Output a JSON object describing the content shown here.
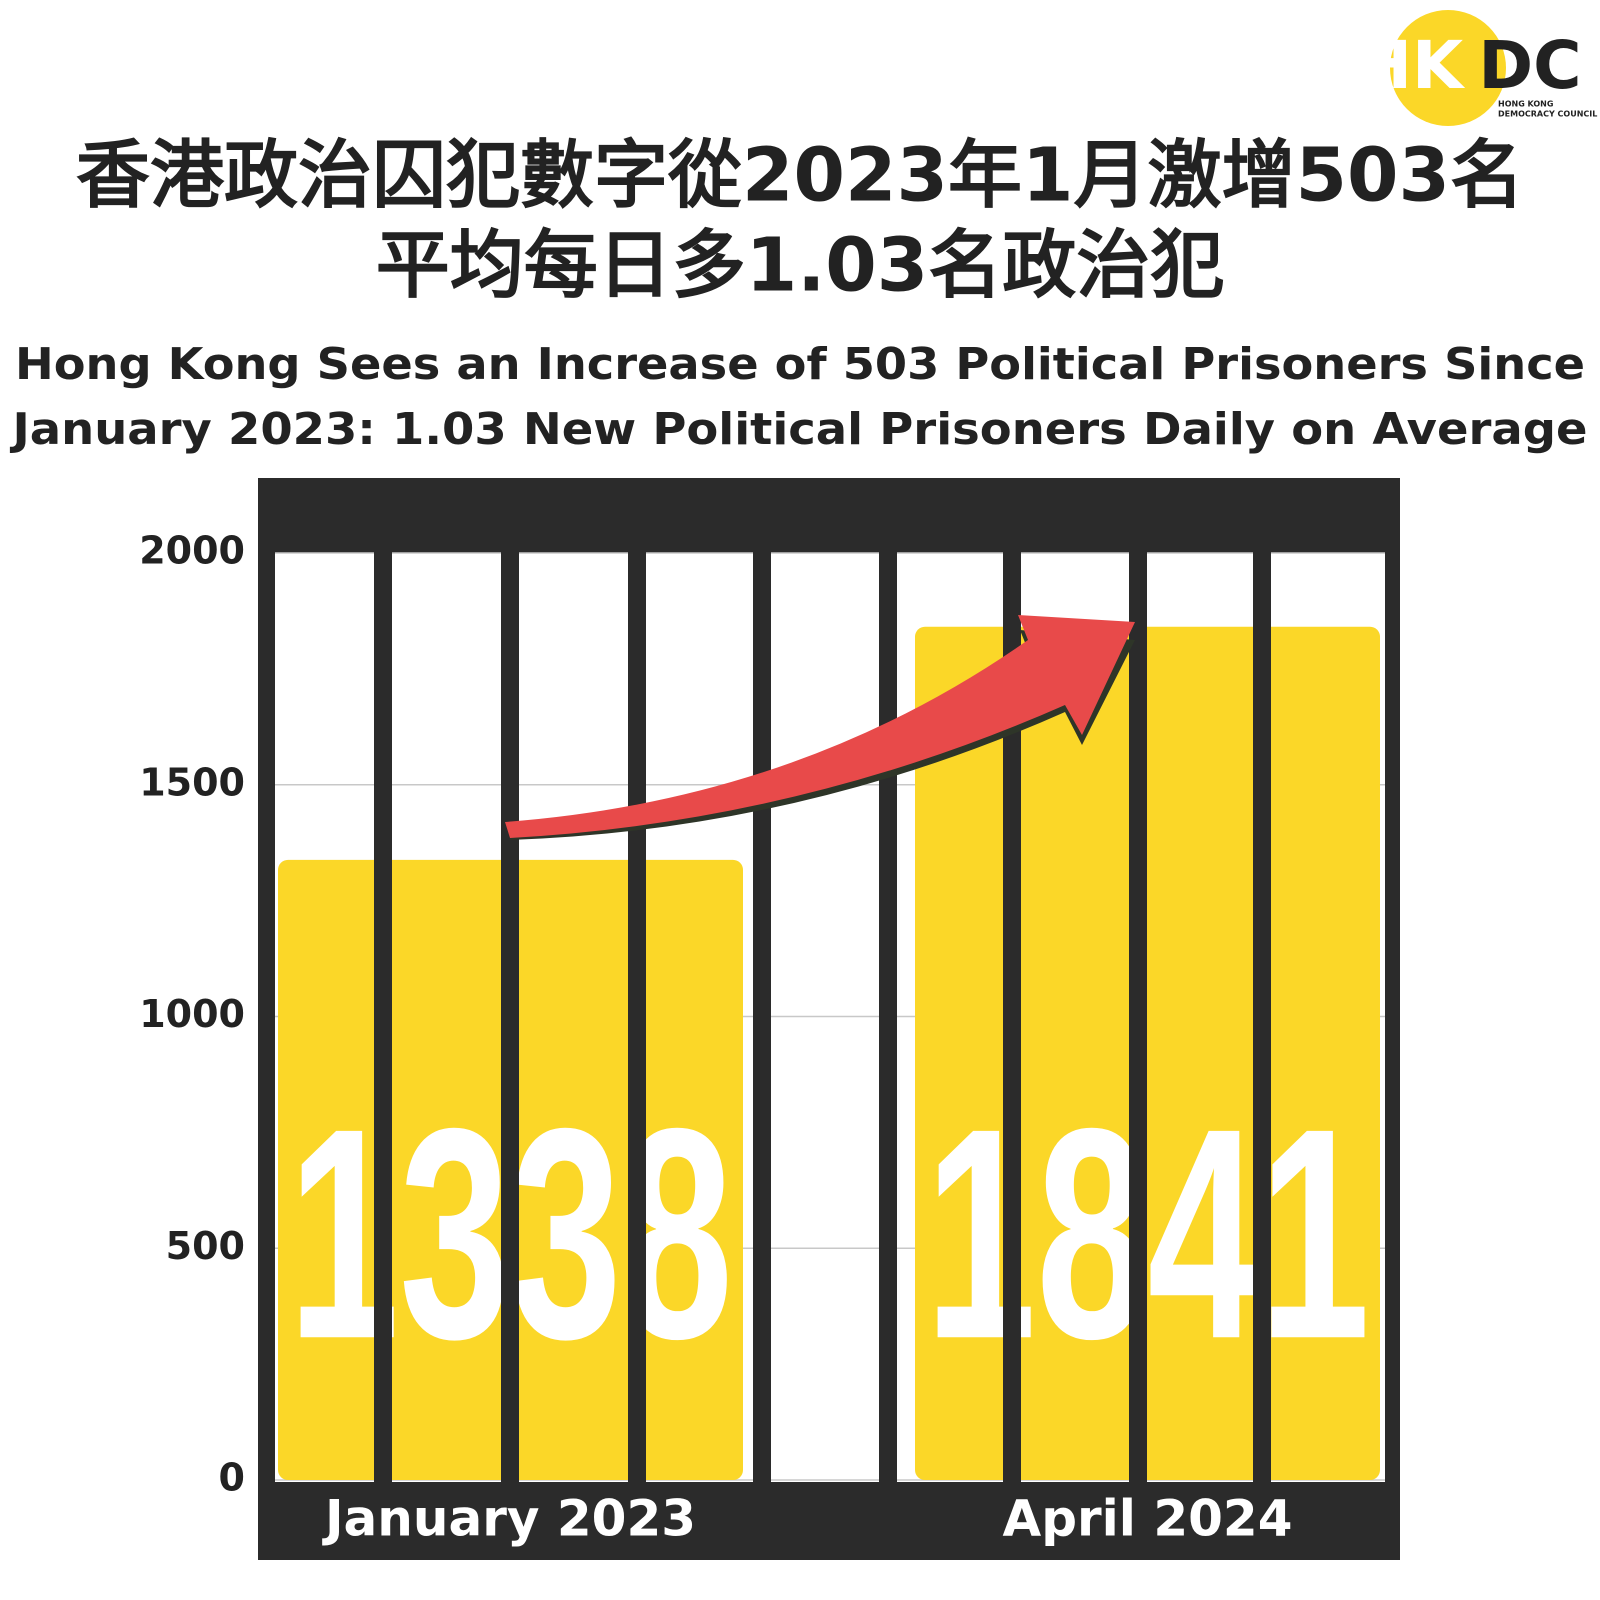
{
  "logo": {
    "left": "HK",
    "right": "DC",
    "caption": [
      "HONG KONG",
      "DEMOCRACY COUNCIL"
    ]
  },
  "chart_data": {
    "type": "bar",
    "title": [
      "香港政治囚犯數字從2023年1月激增503名",
      "平均每日多1.03名政治犯"
    ],
    "subtitle": [
      "Hong Kong Sees an Increase of 503 Political Prisoners Since",
      "January 2023: 1.03 New Political Prisoners Daily on Average"
    ],
    "categories": [
      "January 2023",
      "April 2024"
    ],
    "values": [
      1338,
      1841
    ],
    "color": "#fbd728",
    "ylim": [
      0,
      2000
    ],
    "yticks": [
      0,
      500,
      1000,
      1500,
      2000
    ],
    "grid": true
  }
}
